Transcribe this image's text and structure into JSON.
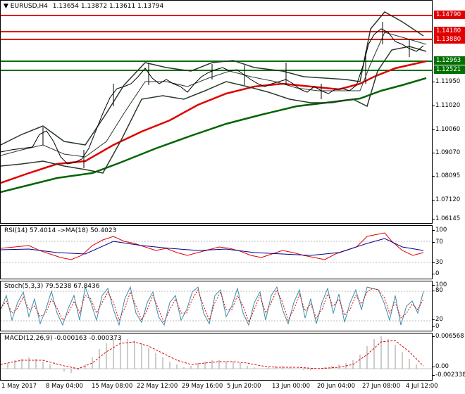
{
  "main": {
    "symbol": "EURUSD,H4",
    "ohlc": "1.13654 1.13872 1.13611 1.13794",
    "ticks": [
      "1.14790",
      "1.14180",
      "1.13880",
      "1.12963",
      "1.12521",
      "1.11950",
      "1.11020",
      "1.10060",
      "1.09070",
      "1.08095",
      "1.07120",
      "1.06145"
    ],
    "levels": [
      {
        "label": "1.14790",
        "color": "#e00000"
      },
      {
        "label": "1.14180",
        "color": "#e00000"
      },
      {
        "label": "1.13880",
        "color": "#e00000"
      },
      {
        "label": "1.12963",
        "color": "#007000"
      },
      {
        "label": "1.12521",
        "color": "#007000"
      }
    ]
  },
  "rsi": {
    "header": "RSI(14) 57.4014  ->MA(18) 50.4023",
    "ticks": [
      "100",
      "70",
      "30",
      "0"
    ]
  },
  "stoch": {
    "header": "Stoch(5,3,3) 79.5238 67.8436",
    "ticks": [
      "100",
      "80",
      "20",
      "0"
    ]
  },
  "macd": {
    "header": "MACD(12,26,9) -0.000163 -0.000373",
    "ticks": [
      "0.006568",
      "0.00",
      "-0.002338"
    ]
  },
  "xaxis": [
    "1 May 2017",
    "8 May 04:00",
    "15 May 08:00",
    "22 May 12:00",
    "29 May 16:00",
    "5 Jun 20:00",
    "13 Jun 00:00",
    "20 Jun 04:00",
    "27 Jun 08:00",
    "4 Jul 12:00"
  ],
  "colors": {
    "resistance": "#e00000",
    "support": "#007000",
    "ma_fast": "#e00000",
    "ma_slow": "#006400"
  }
}
